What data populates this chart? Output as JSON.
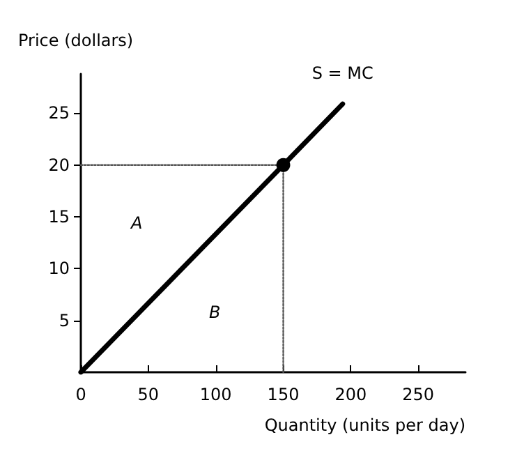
{
  "chart_data": {
    "type": "line",
    "xlabel": "Quantity (units per day)",
    "ylabel": "Price (dollars)",
    "series": [
      {
        "name": "S = MC",
        "color": "#000000",
        "x": [
          0,
          150,
          194
        ],
        "values": [
          0,
          20,
          25.9
        ],
        "line_style": "solid"
      },
      {
        "type": "line",
        "color": "#555555",
        "x": [
          0,
          150,
          150
        ],
        "values": [
          20,
          20,
          0
        ],
        "line_style": "dotted"
      },
      {
        "type": "scatter",
        "color": "#000000",
        "x": [
          150
        ],
        "values": [
          20
        ],
        "marker": "circle"
      }
    ],
    "annotations": [
      "A",
      "B"
    ],
    "xlim": [
      0,
      285
    ],
    "xticks": [
      0,
      50,
      100,
      150,
      200,
      250
    ],
    "ylim": [
      0,
      28.8
    ],
    "yticks": [
      5,
      10,
      15,
      20,
      25
    ],
    "grid": false,
    "legend": false
  }
}
